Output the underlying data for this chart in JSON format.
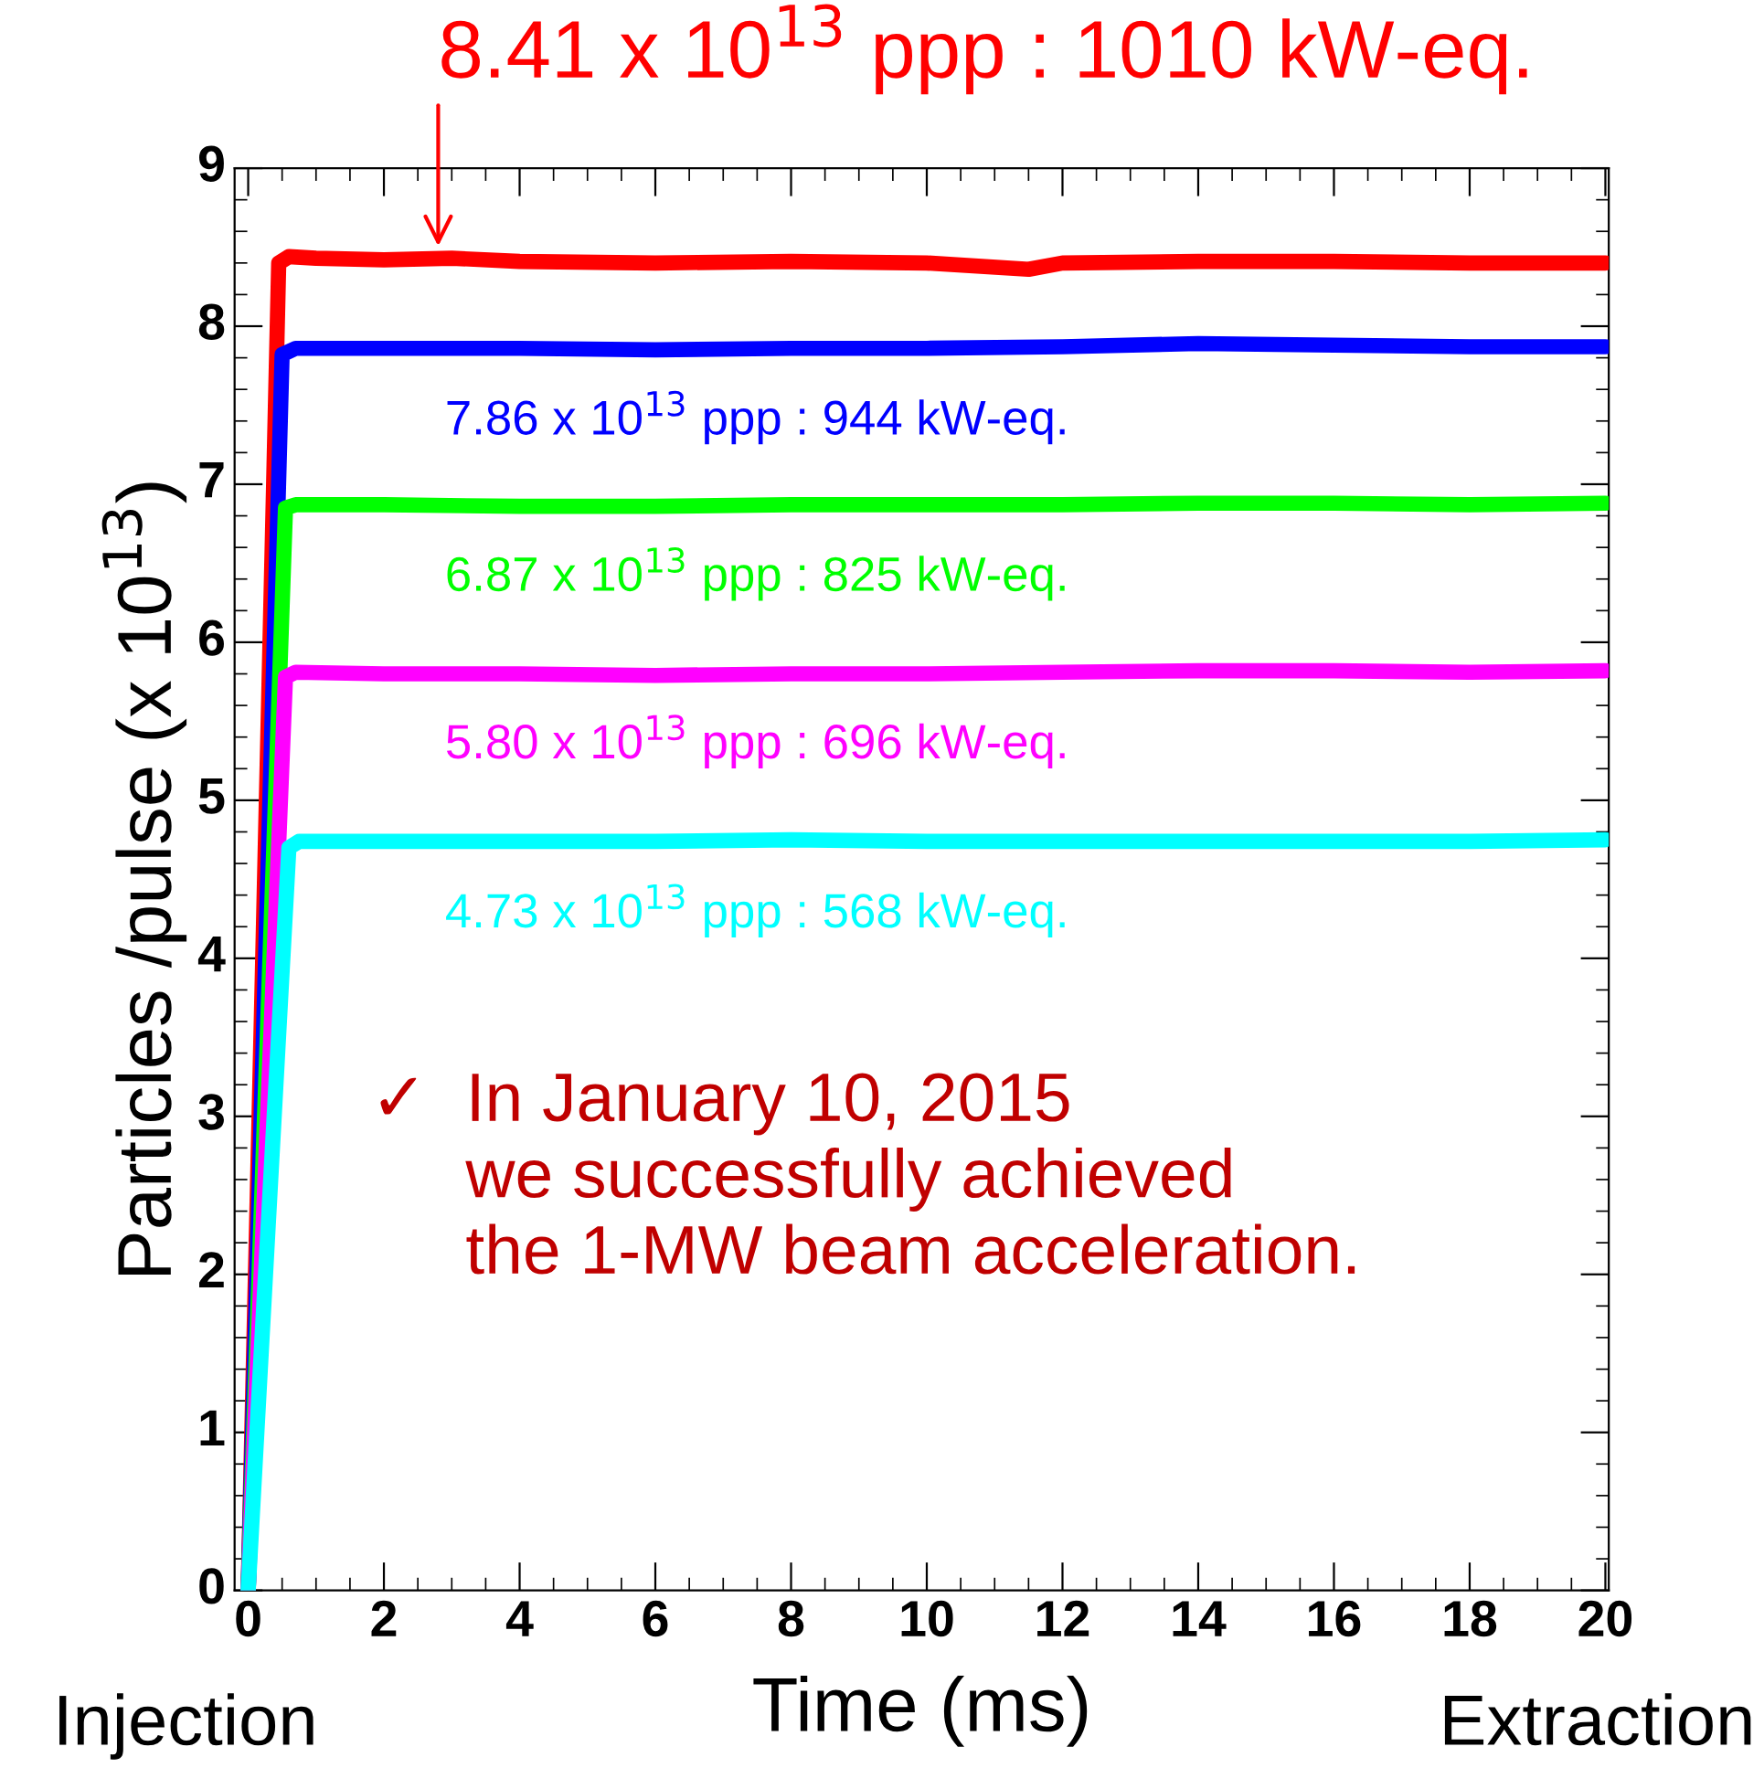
{
  "chart_data": {
    "type": "line",
    "xlabel": "Time (ms)",
    "ylabel": "Particles /pulse (x 10$^{13}$)",
    "xlim": [
      -0.2,
      20.05
    ],
    "ylim": [
      0,
      9
    ],
    "xticks": [
      0,
      2,
      4,
      6,
      8,
      10,
      12,
      14,
      16,
      18,
      20
    ],
    "yticks": [
      0,
      1,
      2,
      3,
      4,
      5,
      6,
      7,
      8,
      9
    ],
    "grid": false,
    "legend": false,
    "line_style": "solid",
    "marker": "none",
    "series": [
      {
        "name": null,
        "color": "#ff0000",
        "x": [
          0,
          0.45,
          0.6,
          1,
          2,
          3,
          4,
          6,
          8,
          10,
          11.5,
          12,
          14,
          16,
          18,
          20
        ],
        "values": [
          0,
          8.4,
          8.44,
          8.43,
          8.42,
          8.43,
          8.41,
          8.4,
          8.41,
          8.4,
          8.36,
          8.4,
          8.41,
          8.41,
          8.4,
          8.4
        ]
      },
      {
        "name": "7.86 x 10$^{13}$ ppp : 944 kW-eq.",
        "color": "#0000ff",
        "x": [
          0,
          0.5,
          0.7,
          2,
          4,
          6,
          8,
          10,
          12,
          14,
          16,
          18,
          20
        ],
        "values": [
          0,
          7.82,
          7.86,
          7.86,
          7.86,
          7.85,
          7.86,
          7.86,
          7.87,
          7.89,
          7.88,
          7.87,
          7.87
        ]
      },
      {
        "name": "6.87 x 10$^{13}$ ppp : 825 kW-eq.",
        "color": "#00ff00",
        "x": [
          0,
          0.55,
          0.7,
          2,
          4,
          6,
          8,
          10,
          12,
          14,
          16,
          18,
          20
        ],
        "values": [
          0,
          6.85,
          6.87,
          6.87,
          6.86,
          6.86,
          6.87,
          6.87,
          6.87,
          6.88,
          6.88,
          6.87,
          6.88
        ]
      },
      {
        "name": "5.80 x 10$^{13}$ ppp : 696 kW-eq.",
        "color": "#ff00ff",
        "x": [
          0,
          0.55,
          0.7,
          2,
          4,
          6,
          8,
          10,
          12,
          14,
          16,
          18,
          20
        ],
        "values": [
          0,
          5.78,
          5.81,
          5.8,
          5.8,
          5.79,
          5.8,
          5.8,
          5.81,
          5.82,
          5.82,
          5.81,
          5.82
        ]
      },
      {
        "name": "4.73 x 10$^{13}$ ppp : 568 kW-eq.",
        "color": "#00ffff",
        "x": [
          0,
          0.6,
          0.75,
          2,
          4,
          6,
          8,
          10,
          12,
          14,
          16,
          18,
          20
        ],
        "values": [
          0,
          4.7,
          4.74,
          4.74,
          4.74,
          4.74,
          4.75,
          4.74,
          4.74,
          4.74,
          4.74,
          4.74,
          4.75
        ]
      }
    ],
    "annotations": [
      {
        "text": "8.41 x 10$^{13}$ ppp : 1010 kW-eq.",
        "x": 2.8,
        "y": 8.41
      },
      "✓  In January 10, 2015\n     we successfully achieved\n     the 1-MW beam acceleration.",
      "Injection",
      "Extraction"
    ]
  }
}
